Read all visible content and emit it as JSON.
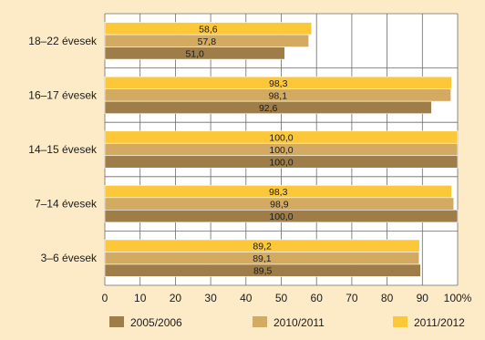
{
  "chart_data": {
    "type": "bar",
    "orientation": "horizontal",
    "categories": [
      "18–22 évesek",
      "16–17 évesek",
      "14–15 évesek",
      "7–14 évesek",
      "3–6 évesek"
    ],
    "series": [
      {
        "name": "2005/2006",
        "values": [
          51.0,
          92.6,
          100.0,
          100.0,
          89.5
        ],
        "labels": [
          "51,0",
          "92,6",
          "100,0",
          "100,0",
          "89,5"
        ],
        "color": "#9e7d48"
      },
      {
        "name": "2010/2011",
        "values": [
          57.8,
          98.1,
          100.0,
          98.9,
          89.1
        ],
        "labels": [
          "57,8",
          "98,1",
          "100,0",
          "98,9",
          "89,1"
        ],
        "color": "#d3aa62"
      },
      {
        "name": "2011/2012",
        "values": [
          58.6,
          98.3,
          100.0,
          98.3,
          89.2
        ],
        "labels": [
          "58,6",
          "98,3",
          "100,0",
          "98,3",
          "89,2"
        ],
        "color": "#fdc73a"
      }
    ],
    "xlim": [
      0,
      100
    ],
    "xticks": [
      "0",
      "10",
      "20",
      "30",
      "40",
      "50",
      "60",
      "70",
      "80",
      "90",
      "100%"
    ],
    "grid": true,
    "legend_position": "bottom"
  }
}
